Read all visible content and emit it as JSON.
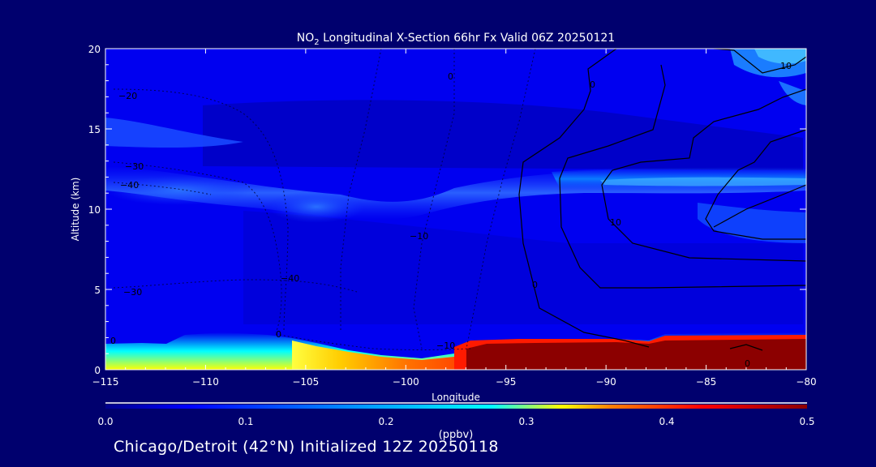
{
  "chart_data": {
    "type": "heatmap",
    "title_prefix": "NO",
    "title_subscript": "2",
    "title_rest": " Longitudinal X-Section 66hr  Fx Valid 06Z 20250121",
    "xlabel": "Longitude",
    "ylabel": "Altitude (km)",
    "xlim": [
      -115,
      -80
    ],
    "ylim": [
      0,
      20
    ],
    "x_ticks": [
      -115,
      -110,
      -105,
      -100,
      -95,
      -90,
      -85,
      -80
    ],
    "x_tick_labels": [
      "−115",
      "−110",
      "−105",
      "−100",
      "−95",
      "−90",
      "−85",
      "−80"
    ],
    "y_ticks": [
      0,
      5,
      10,
      15,
      20
    ],
    "colorbar": {
      "label": "(ppbv)",
      "range": [
        0.0,
        0.5
      ],
      "ticks": [
        0.0,
        0.1,
        0.2,
        0.3,
        0.4,
        0.5
      ],
      "tick_labels": [
        "0.0",
        "0.1",
        "0.2",
        "0.3",
        "0.4",
        "0.5"
      ]
    },
    "contour_labels": [
      "−20",
      "−30",
      "−40",
      "−30",
      "−40",
      "0",
      "0",
      "−10",
      "−10",
      "0",
      "10",
      "10",
      "0",
      "0",
      "0"
    ],
    "colors": {
      "background": "#00006e",
      "scale": [
        "#00008c",
        "#0000ff",
        "#00a0ff",
        "#00ffff",
        "#ffff00",
        "#ff8000",
        "#ff0000",
        "#8c0000"
      ]
    }
  },
  "caption": "Chicago/Detroit (42°N) Initialized 12Z 20250118"
}
